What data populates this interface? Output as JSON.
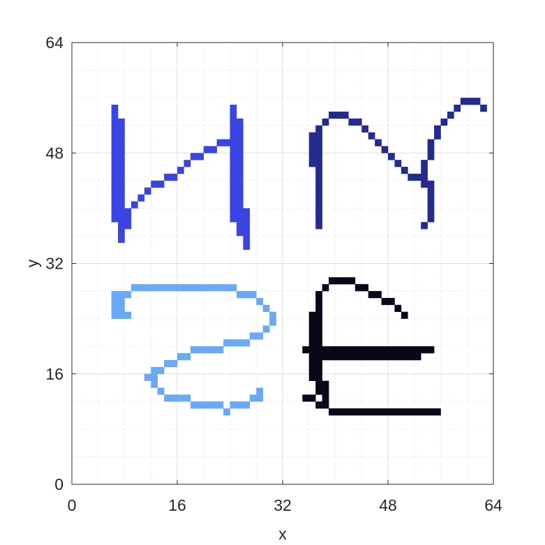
{
  "chart_data": {
    "type": "heatmap",
    "title": "",
    "xlabel": "x",
    "ylabel": "y",
    "xlim": [
      0,
      64
    ],
    "ylim": [
      0,
      64
    ],
    "xticks": [
      0,
      16,
      32,
      48,
      64
    ],
    "yticks": [
      0,
      16,
      32,
      48,
      64
    ],
    "grid": true,
    "minor_grid": true,
    "background": "#ffffff",
    "series": [
      {
        "color": "#3a44e0",
        "strokes": [
          [
            [
              6,
              54
            ],
            [
              6,
              38
            ]
          ],
          [
            [
              7,
              52
            ],
            [
              7,
              35
            ]
          ],
          [
            [
              6,
              38
            ],
            [
              8,
              38
            ],
            [
              7,
              36
            ]
          ],
          [
            [
              7,
              38
            ],
            [
              9,
              40
            ],
            [
              11,
              42
            ],
            [
              13,
              43
            ],
            [
              15,
              44
            ],
            [
              17,
              46
            ],
            [
              19,
              47
            ],
            [
              21,
              48
            ],
            [
              23,
              49
            ],
            [
              25,
              50
            ]
          ],
          [
            [
              24,
              54
            ],
            [
              24,
              38
            ]
          ],
          [
            [
              25,
              52
            ],
            [
              25,
              37
            ],
            [
              26,
              34
            ]
          ],
          [
            [
              26,
              39
            ],
            [
              26,
              35
            ]
          ]
        ]
      },
      {
        "color": "#252a8e",
        "strokes": [
          [
            [
              37,
              51
            ],
            [
              37,
              46
            ]
          ],
          [
            [
              36,
              50
            ],
            [
              36,
              46
            ]
          ],
          [
            [
              37,
              49
            ],
            [
              37,
              37
            ]
          ],
          [
            [
              36,
              49
            ],
            [
              37,
              51
            ],
            [
              38,
              52
            ],
            [
              40,
              53
            ],
            [
              42,
              52
            ],
            [
              44,
              51
            ],
            [
              45,
              50
            ],
            [
              47,
              48
            ],
            [
              49,
              46
            ],
            [
              51,
              44
            ],
            [
              53,
              43
            ]
          ],
          [
            [
              53,
              44
            ],
            [
              54,
              42
            ],
            [
              54,
              38
            ],
            [
              53,
              37
            ]
          ],
          [
            [
              53,
              45
            ],
            [
              54,
              48
            ],
            [
              55,
              51
            ],
            [
              57,
              53
            ],
            [
              59,
              55
            ],
            [
              61,
              55
            ],
            [
              62,
              54
            ]
          ]
        ]
      },
      {
        "color": "#6aa8f8",
        "strokes": [
          [
            [
              6,
              27
            ],
            [
              6,
              24
            ]
          ],
          [
            [
              7,
              26
            ],
            [
              7,
              24
            ],
            [
              8,
              24
            ]
          ],
          [
            [
              6,
              27
            ],
            [
              8,
              27
            ],
            [
              9,
              28
            ],
            [
              10,
              28
            ],
            [
              14,
              28
            ],
            [
              20,
              28
            ],
            [
              24,
              28
            ],
            [
              25,
              27
            ],
            [
              27,
              27
            ],
            [
              28,
              26
            ],
            [
              29,
              25
            ],
            [
              30,
              24
            ],
            [
              30,
              23
            ]
          ],
          [
            [
              30,
              23
            ],
            [
              29,
              22
            ],
            [
              28,
              21
            ],
            [
              26,
              20
            ],
            [
              24,
              20
            ],
            [
              21,
              19
            ],
            [
              19,
              19
            ],
            [
              17,
              18
            ],
            [
              15,
              17
            ],
            [
              13,
              16
            ],
            [
              12,
              16
            ],
            [
              12,
              14
            ]
          ],
          [
            [
              11,
              15
            ],
            [
              12,
              14
            ],
            [
              13,
              13
            ],
            [
              14,
              12
            ],
            [
              16,
              12
            ],
            [
              18,
              11
            ],
            [
              20,
              11
            ],
            [
              22,
              11
            ],
            [
              23,
              10
            ],
            [
              24,
              11
            ],
            [
              26,
              11
            ],
            [
              28,
              12
            ],
            [
              28,
              13
            ]
          ]
        ]
      },
      {
        "color": "#080818",
        "strokes": [
          [
            [
              37,
              27
            ],
            [
              37,
              13
            ]
          ],
          [
            [
              36,
              24
            ],
            [
              36,
              15
            ]
          ],
          [
            [
              35,
              19
            ],
            [
              54,
              19
            ]
          ],
          [
            [
              36,
              18
            ],
            [
              52,
              18
            ]
          ],
          [
            [
              37,
              27
            ],
            [
              39,
              29
            ],
            [
              41,
              29
            ],
            [
              43,
              28
            ],
            [
              45,
              27
            ],
            [
              47,
              26
            ],
            [
              49,
              25
            ],
            [
              50,
              24
            ]
          ],
          [
            [
              35,
              12
            ],
            [
              38,
              11
            ],
            [
              39,
              10
            ],
            [
              42,
              10
            ],
            [
              46,
              10
            ],
            [
              50,
              10
            ],
            [
              55,
              10
            ]
          ],
          [
            [
              38,
              14
            ],
            [
              38,
              11
            ]
          ]
        ]
      }
    ]
  }
}
